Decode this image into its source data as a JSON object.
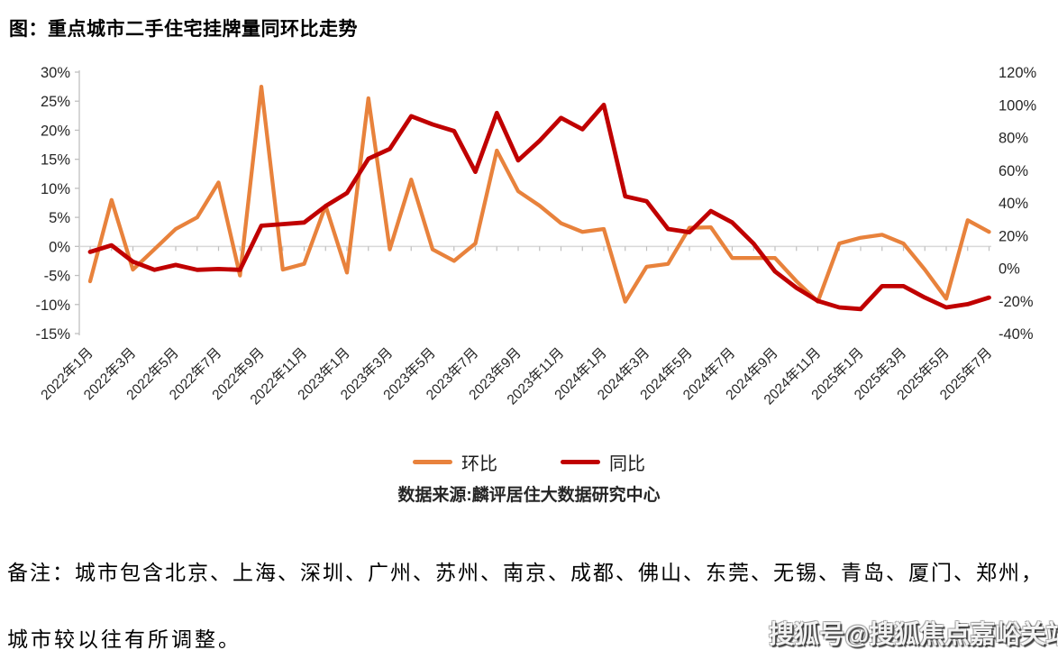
{
  "title": "图：重点城市二手住宅挂牌量同环比走势",
  "note_line1": "备注：城市包含北京、上海、深圳、广州、苏州、南京、成都、佛山、东莞、无锡、青岛、厦门、郑州，",
  "note_line2": "城市较以往有所调整。",
  "watermark": "搜狐号@搜狐焦点嘉峪关站",
  "chart_data": {
    "type": "line",
    "title": "图：重点城市二手住宅挂牌量同环比走势",
    "source": "数据来源:麟评居住大数据研究中心",
    "legend_position": "bottom",
    "grid": "zero-line-only",
    "categories": [
      "2022年1月",
      "2022年2月",
      "2022年3月",
      "2022年4月",
      "2022年5月",
      "2022年6月",
      "2022年7月",
      "2022年8月",
      "2022年9月",
      "2022年10月",
      "2022年11月",
      "2022年12月",
      "2023年1月",
      "2023年2月",
      "2023年3月",
      "2023年4月",
      "2023年5月",
      "2023年6月",
      "2023年7月",
      "2023年8月",
      "2023年9月",
      "2023年10月",
      "2023年11月",
      "2023年12月",
      "2024年1月",
      "2024年2月",
      "2024年3月",
      "2024年4月",
      "2024年5月",
      "2024年6月",
      "2024年7月",
      "2024年8月",
      "2024年9月",
      "2024年10月",
      "2024年11月",
      "2024年12月",
      "2025年1月",
      "2025年2月",
      "2025年3月",
      "2025年4月",
      "2025年5月",
      "2025年6月",
      "2025年7月"
    ],
    "x_label_every": 2,
    "left_axis": {
      "unit": "%",
      "min": -15,
      "max": 30,
      "step": 5,
      "tick_labels": [
        "30%",
        "25%",
        "20%",
        "15%",
        "10%",
        "5%",
        "0%",
        "-5%",
        "-10%",
        "-15%"
      ]
    },
    "right_axis": {
      "unit": "%",
      "min": -40,
      "max": 120,
      "step": 20,
      "tick_labels": [
        "120%",
        "100%",
        "80%",
        "60%",
        "40%",
        "20%",
        "0%",
        "-20%",
        "-40%"
      ]
    },
    "series": [
      {
        "name": "环比",
        "axis": "left",
        "color": "#E8823C",
        "values": [
          -6,
          8,
          -4,
          -0.5,
          3,
          5,
          11,
          -5,
          27.5,
          -4,
          -3,
          7,
          -4.5,
          25.5,
          -0.5,
          11.5,
          -0.5,
          -2.5,
          0.5,
          16.5,
          9.5,
          7,
          4,
          2.5,
          3,
          -9.5,
          -3.5,
          -3,
          3.2,
          3.3,
          -2,
          -2,
          -2,
          -6,
          -9.5,
          0.5,
          1.5,
          2,
          0.5,
          -4,
          -9,
          4.5,
          2.5
        ]
      },
      {
        "name": "同比",
        "axis": "right",
        "color": "#C00000",
        "values": [
          10,
          14,
          4,
          -1,
          2,
          -1,
          -0.5,
          -1,
          26,
          27,
          28,
          38,
          46,
          67,
          73,
          93,
          88,
          84,
          59,
          95,
          66,
          78,
          92,
          85,
          100,
          44,
          41,
          24,
          22,
          35,
          28,
          15,
          -2,
          -12,
          -20,
          -24,
          -25,
          -11,
          -11,
          -18,
          -24,
          -22,
          -18
        ]
      }
    ],
    "axis_color": "#BFBFBF",
    "gridline_color": "#D9D9D9",
    "label_color": "#262626"
  }
}
